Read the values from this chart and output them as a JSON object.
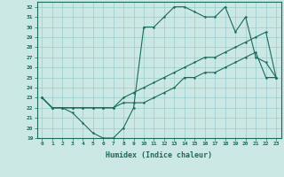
{
  "xlabel": "Humidex (Indice chaleur)",
  "bg_color": "#cce8e4",
  "line_color": "#1a6b5a",
  "grid_color": "#99cccc",
  "xlim": [
    -0.5,
    23.5
  ],
  "ylim": [
    19,
    32.5
  ],
  "yticks": [
    19,
    20,
    21,
    22,
    23,
    24,
    25,
    26,
    27,
    28,
    29,
    30,
    31,
    32
  ],
  "xticks": [
    0,
    1,
    2,
    3,
    4,
    5,
    6,
    7,
    8,
    9,
    10,
    11,
    12,
    13,
    14,
    15,
    16,
    17,
    18,
    19,
    20,
    21,
    22,
    23
  ],
  "line1_y": [
    23,
    22,
    22,
    21.5,
    20.5,
    19.5,
    19,
    19,
    20,
    22,
    30,
    30,
    31,
    32,
    32,
    31.5,
    31,
    31,
    32,
    29.5,
    31,
    27,
    26.5,
    25
  ],
  "line2_y": [
    23,
    22,
    22,
    22,
    22,
    22,
    22,
    22,
    23,
    23.5,
    24,
    24.5,
    25,
    25.5,
    26,
    26.5,
    27,
    27,
    27.5,
    28,
    28.5,
    29,
    29.5,
    25
  ],
  "line3_y": [
    23,
    22,
    22,
    22,
    22,
    22,
    22,
    22,
    22.5,
    22.5,
    22.5,
    23,
    23.5,
    24,
    25,
    25,
    25.5,
    25.5,
    26,
    26.5,
    27,
    27.5,
    25,
    25
  ]
}
